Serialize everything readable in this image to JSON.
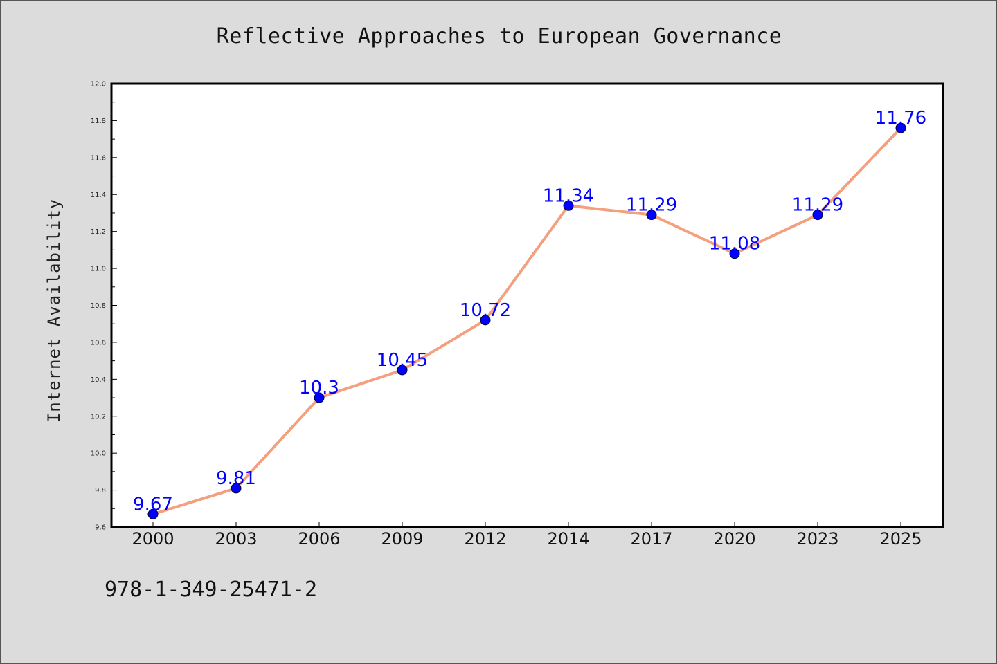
{
  "colors": {
    "background": "#dcdcdc",
    "plot_background": "#ffffff",
    "line": "#f4a07f",
    "marker": "#0000ff",
    "data_label": "#0000ff"
  },
  "footer": {
    "isbn": "978-1-349-25471-2"
  },
  "chart_data": {
    "type": "line",
    "title": "Reflective Approaches to European Governance",
    "xlabel": "",
    "ylabel": "Internet Availability",
    "categories": [
      "2000",
      "2003",
      "2006",
      "2009",
      "2012",
      "2014",
      "2017",
      "2020",
      "2023",
      "2025"
    ],
    "series": [
      {
        "values": [
          9.67,
          9.81,
          10.3,
          10.45,
          10.72,
          11.34,
          11.29,
          11.08,
          11.29,
          11.76
        ],
        "value_labels": [
          "9.67",
          "9.81",
          "10.3",
          "10.45",
          "10.72",
          "11.34",
          "11.29",
          "11.08",
          "11.29",
          "11.76"
        ]
      }
    ],
    "ylim": [
      9.6,
      12.0
    ],
    "yticks": [
      "9.6",
      "9.8",
      "10.0",
      "10.2",
      "10.4",
      "10.6",
      "10.8",
      "11.0",
      "11.2",
      "11.4",
      "11.6",
      "11.8",
      "12.0"
    ],
    "grid": false,
    "legend": "none"
  }
}
